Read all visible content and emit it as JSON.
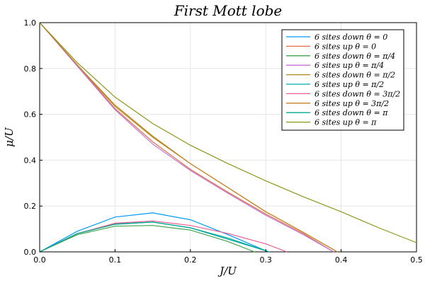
{
  "chart_data": {
    "type": "line",
    "title": "First Mott lobe",
    "xlabel": "J/U",
    "ylabel": "μ/U",
    "xlim": [
      0,
      0.5
    ],
    "ylim": [
      0,
      1.0
    ],
    "xticks": [
      "0.0",
      "0.1",
      "0.2",
      "0.3",
      "0.4",
      "0.5"
    ],
    "yticks": [
      "0.0",
      "0.2",
      "0.4",
      "0.6",
      "0.8",
      "1.0"
    ],
    "grid": true,
    "legend_position": "top-right",
    "series": [
      {
        "name": "6 sites down θ = 0",
        "color": "#009af9",
        "x": [
          0,
          0.05,
          0.1,
          0.15,
          0.2,
          0.25,
          0.3
        ],
        "y": [
          0,
          0.09,
          0.152,
          0.17,
          0.14,
          0.075,
          0.005
        ]
      },
      {
        "name": "6 sites up θ = 0",
        "color": "#e26f46",
        "x": [
          0,
          0.05,
          0.1,
          0.15,
          0.2,
          0.25,
          0.3,
          0.35,
          0.39
        ],
        "y": [
          1.0,
          0.815,
          0.625,
          0.48,
          0.36,
          0.26,
          0.165,
          0.08,
          0.0
        ]
      },
      {
        "name": "6 sites down θ = π/4",
        "color": "#3da44d",
        "x": [
          0,
          0.05,
          0.1,
          0.15,
          0.2,
          0.25,
          0.285
        ],
        "y": [
          0,
          0.075,
          0.112,
          0.115,
          0.095,
          0.045,
          0.0
        ]
      },
      {
        "name": "6 sites up θ = π/4",
        "color": "#c271d2",
        "x": [
          0,
          0.05,
          0.1,
          0.15,
          0.2,
          0.25,
          0.3,
          0.35,
          0.39
        ],
        "y": [
          1.0,
          0.81,
          0.62,
          0.47,
          0.355,
          0.255,
          0.16,
          0.075,
          0.0
        ]
      },
      {
        "name": "6 sites down θ = π/2",
        "color": "#ac8d18",
        "x": [
          0,
          0.05,
          0.1,
          0.15,
          0.2,
          0.25,
          0.3,
          0.35,
          0.395
        ],
        "y": [
          1.0,
          0.815,
          0.64,
          0.505,
          0.385,
          0.28,
          0.175,
          0.085,
          0.0
        ]
      },
      {
        "name": "6 sites up θ = π/2",
        "color": "#00a9ad",
        "x": [
          0,
          0.05,
          0.1,
          0.15,
          0.2,
          0.25,
          0.305
        ],
        "y": [
          0,
          0.08,
          0.122,
          0.13,
          0.105,
          0.055,
          0.0
        ]
      },
      {
        "name": "6 sites down θ = 3π/2",
        "color": "#ed5d92",
        "x": [
          0,
          0.05,
          0.1,
          0.15,
          0.2,
          0.25,
          0.3,
          0.328
        ],
        "y": [
          0,
          0.08,
          0.125,
          0.135,
          0.115,
          0.08,
          0.035,
          0.0
        ]
      },
      {
        "name": "6 sites up θ = 3π/2",
        "color": "#c68225",
        "x": [
          0,
          0.05,
          0.1,
          0.15,
          0.2,
          0.25,
          0.3,
          0.35,
          0.395
        ],
        "y": [
          1.0,
          0.815,
          0.635,
          0.5,
          0.385,
          0.28,
          0.175,
          0.085,
          0.0
        ]
      },
      {
        "name": "6 sites down θ = π",
        "color": "#00a98d",
        "x": [
          0,
          0.05,
          0.1,
          0.15,
          0.2,
          0.25,
          0.3
        ],
        "y": [
          0,
          0.08,
          0.12,
          0.13,
          0.105,
          0.06,
          0.005
        ]
      },
      {
        "name": "6 sites up θ = π",
        "color": "#8e971d",
        "x": [
          0,
          0.05,
          0.1,
          0.15,
          0.2,
          0.25,
          0.3,
          0.35,
          0.4,
          0.45,
          0.5
        ],
        "y": [
          1.0,
          0.825,
          0.675,
          0.56,
          0.465,
          0.385,
          0.31,
          0.24,
          0.175,
          0.105,
          0.04
        ]
      }
    ]
  }
}
